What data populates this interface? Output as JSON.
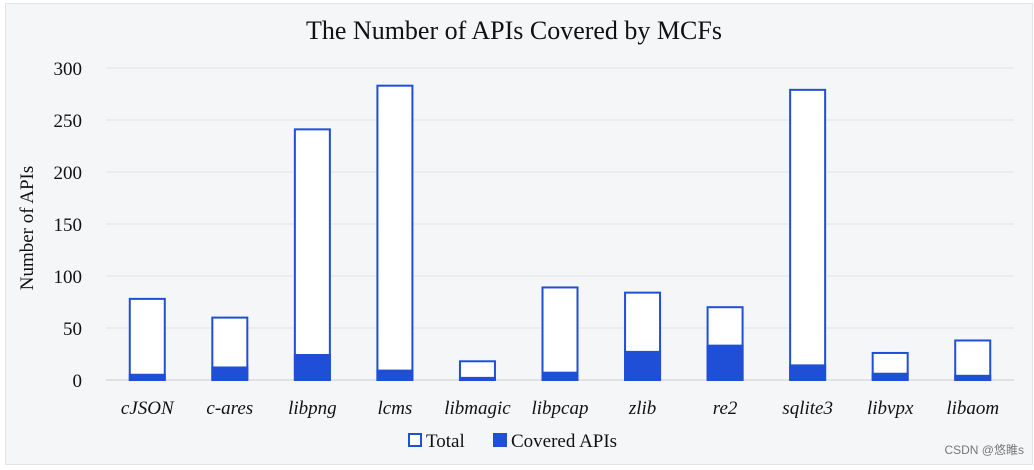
{
  "chart_data": {
    "type": "bar",
    "title": "The Number of APIs Covered by MCFs",
    "ylabel": "Number of APIs",
    "xlabel": "",
    "ylim": [
      0,
      300
    ],
    "yticks": [
      0,
      50,
      100,
      150,
      200,
      250,
      300
    ],
    "categories": [
      "cJSON",
      "c-ares",
      "libpng",
      "lcms",
      "libmagic",
      "libpcap",
      "zlib",
      "re2",
      "sqlite3",
      "libvpx",
      "libaom"
    ],
    "series": [
      {
        "name": "Total",
        "style": "outline",
        "color": "#1f4fd6",
        "values": [
          78,
          60,
          241,
          283,
          18,
          89,
          84,
          70,
          279,
          26,
          38
        ]
      },
      {
        "name": "Covered APIs",
        "style": "filled",
        "color": "#1f4fd6",
        "values": [
          6,
          13,
          25,
          10,
          3,
          8,
          28,
          34,
          15,
          7,
          5
        ]
      }
    ],
    "grid": true,
    "legend_position": "bottom-center",
    "background": "#f5f6f8"
  },
  "watermark": "CSDN @悠睢s"
}
